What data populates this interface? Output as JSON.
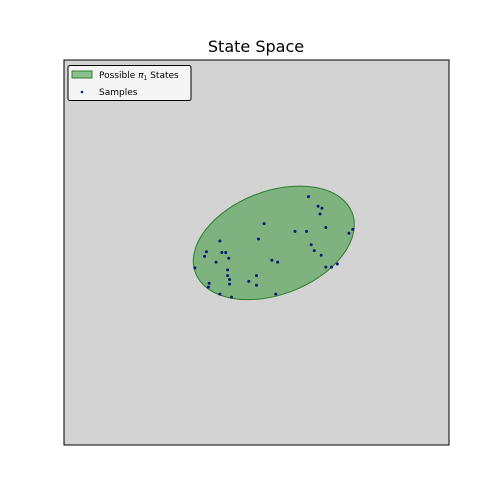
{
  "chart_data": {
    "type": "scatter",
    "title": "State Space",
    "xlabel": "",
    "ylabel": "",
    "xlim": [
      0,
      10
    ],
    "ylim": [
      0,
      10
    ],
    "grid": false,
    "legend_position": "top-left",
    "colors": {
      "background": "#d3d3d3",
      "region_fill": "#4a9e4a",
      "region_edge": "#2e7d2e",
      "samples": "#0b1a7a"
    },
    "region": {
      "name_prefix": "Possible ",
      "name_symbol": "π",
      "name_subscript": "1",
      "name_suffix": " States",
      "center": [
        5.45,
        5.25
      ],
      "semi_axes": [
        2.18,
        1.34
      ],
      "angle_deg": 21
    },
    "series": [
      {
        "name": "Samples",
        "x": [
          6.35,
          6.6,
          6.7,
          6.65,
          6.8,
          7.4,
          7.5,
          5.2,
          4.05,
          3.7,
          3.65,
          4.1,
          4.2,
          4.28,
          4.25,
          3.95,
          4.25,
          4.3,
          5.05,
          5.4,
          5.55,
          6.0,
          6.3,
          6.42,
          6.5,
          6.68,
          6.8,
          6.95,
          7.1,
          3.4,
          3.77,
          4.3,
          4.8,
          5.0,
          5.0,
          3.75,
          4.05,
          4.35,
          5.5
        ],
        "y": [
          6.45,
          6.2,
          6.15,
          6.0,
          5.65,
          5.5,
          5.6,
          5.75,
          5.3,
          5.02,
          4.9,
          5.0,
          5.0,
          4.85,
          4.55,
          4.75,
          4.4,
          4.3,
          5.35,
          4.8,
          4.75,
          5.55,
          5.55,
          5.2,
          5.05,
          4.93,
          4.62,
          4.62,
          4.7,
          4.6,
          4.2,
          4.18,
          4.25,
          4.15,
          4.4,
          4.1,
          3.92,
          3.84,
          3.92
        ]
      }
    ]
  }
}
